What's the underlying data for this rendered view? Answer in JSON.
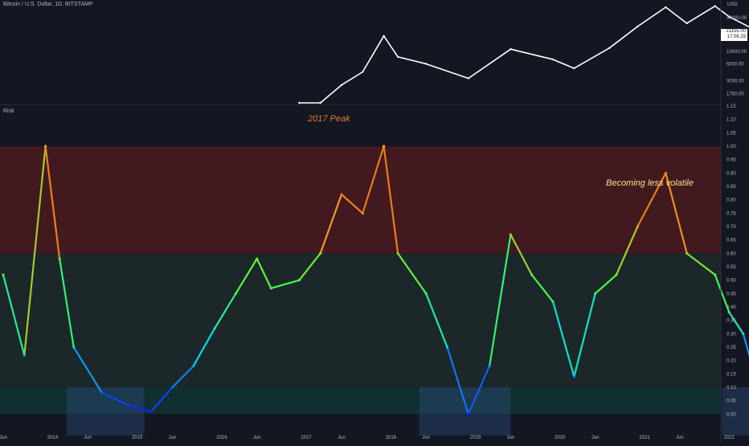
{
  "header": {
    "title": "Bitcoin / U.S. Dollar, 1D, BITSTAMP",
    "currency": "USD",
    "last_price": "21155.00",
    "countdown": "17:06:29"
  },
  "risk_pane": {
    "label": "Risk"
  },
  "annotations": {
    "peak_2017": "2017 Peak",
    "volatility_note": "Becoming less volatile"
  },
  "colors": {
    "background": "#131722",
    "price_line": "#ffffff",
    "high_risk_band": "#4a1a1f",
    "mid_band": "#1f2a2a",
    "low_band": "#123333",
    "accumulation_box": "#2a4a78",
    "peak_text": "#e07b22",
    "note_text": "#f0e68c"
  },
  "chart_data": [
    {
      "type": "line",
      "title": "",
      "scale": "log",
      "series": [
        {
          "name": "",
          "x": [
            "2016-12",
            "2017-03",
            "2017-06",
            "2017-09",
            "2017-12",
            "2018-02",
            "2018-06",
            "2018-12",
            "2019-06",
            "2019-12",
            "2020-03",
            "2020-08",
            "2020-12",
            "2021-04",
            "2021-07",
            "2021-11",
            "2022-01",
            "2022-06",
            "2022-09",
            "2022-11"
          ],
          "values": [
            900,
            1200,
            2500,
            4300,
            19000,
            8000,
            6000,
            3300,
            11000,
            7200,
            5000,
            11500,
            28000,
            62000,
            32000,
            65000,
            42000,
            20000,
            19500,
            21155
          ]
        }
      ],
      "yticks": [
        40000,
        20000,
        10000,
        6000,
        3000,
        1750
      ]
    },
    {
      "type": "line",
      "title": "",
      "xlabel": "",
      "ylabel": "",
      "ylim": [
        -0.05,
        1.15
      ],
      "yticks": [
        1.15,
        1.1,
        1.05,
        1.0,
        0.95,
        0.9,
        0.85,
        0.8,
        0.75,
        0.7,
        0.65,
        0.6,
        0.55,
        0.5,
        0.45,
        0.4,
        0.35,
        0.3,
        0.25,
        0.2,
        0.15,
        0.1,
        0.05,
        -0.0
      ],
      "xticks": [
        "Jun",
        "2014",
        "Jun",
        "2015",
        "Jun",
        "2016",
        "Jun",
        "2017",
        "Jun",
        "2018",
        "Jun",
        "2019",
        "Jun",
        "2020",
        "Jun",
        "2021",
        "Jun",
        "2022",
        "Jun",
        "2023",
        "Jun"
      ],
      "series": [
        {
          "name": "",
          "x": [
            "2013-06",
            "2013-09",
            "2013-12",
            "2014-02",
            "2014-04",
            "2014-08",
            "2014-12",
            "2015-03",
            "2015-06",
            "2015-09",
            "2015-12",
            "2016-03",
            "2016-06",
            "2016-08",
            "2016-12",
            "2017-03",
            "2017-06",
            "2017-09",
            "2017-12",
            "2018-02",
            "2018-06",
            "2018-09",
            "2018-12",
            "2019-03",
            "2019-06",
            "2019-09",
            "2019-12",
            "2020-03",
            "2020-06",
            "2020-09",
            "2020-12",
            "2021-04",
            "2021-07",
            "2021-11",
            "2022-01",
            "2022-03",
            "2022-06",
            "2022-09",
            "2022-11"
          ],
          "values": [
            0.52,
            0.22,
            1.0,
            0.58,
            0.25,
            0.08,
            0.03,
            0.01,
            0.1,
            0.18,
            0.32,
            0.45,
            0.58,
            0.47,
            0.5,
            0.6,
            0.82,
            0.75,
            1.0,
            0.6,
            0.45,
            0.25,
            0.0,
            0.18,
            0.67,
            0.52,
            0.42,
            0.14,
            0.45,
            0.52,
            0.7,
            0.9,
            0.6,
            0.52,
            0.38,
            0.3,
            0.02,
            0.1,
            0.15
          ]
        }
      ],
      "bands": [
        {
          "from": 0.6,
          "to": 1.0,
          "label": ""
        },
        {
          "from": 0.1,
          "to": 0.6,
          "label": ""
        },
        {
          "from": -0.0,
          "to": 0.1,
          "label": ""
        }
      ],
      "highlight_boxes": [
        {
          "x_from": "2014-03",
          "x_to": "2015-02"
        },
        {
          "x_from": "2018-05",
          "x_to": "2019-06"
        },
        {
          "x_from": "2021-12",
          "x_to": "2022-11"
        }
      ]
    }
  ]
}
